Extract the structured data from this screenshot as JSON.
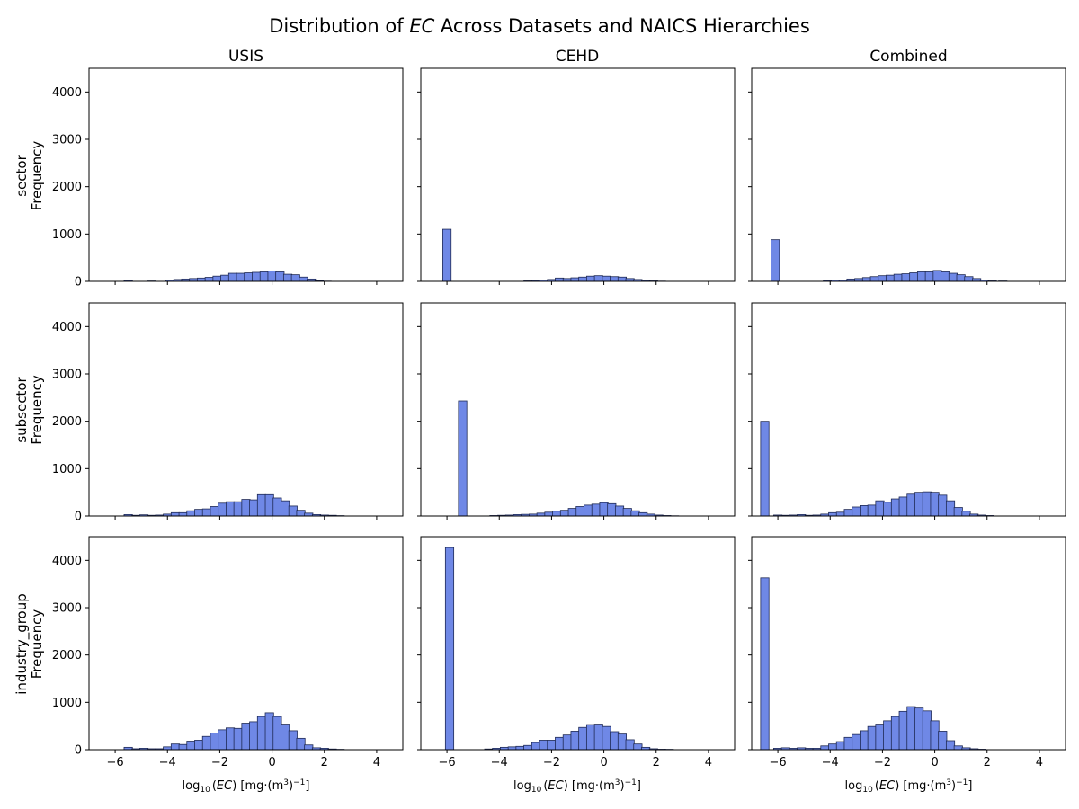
{
  "figure": {
    "title_prefix": "Distribution of ",
    "title_italic": "EC",
    "title_suffix": " Across Datasets and NAICS Hierarchies"
  },
  "columns": [
    "USIS",
    "CEHD",
    "Combined"
  ],
  "rows": [
    "sector",
    "subsector",
    "industry_group"
  ],
  "ylabel": "Frequency",
  "xlabel": {
    "log": "log",
    "sub": "10",
    "open": "(",
    "var": "EC",
    "close": ")",
    "units": " [mg·(m",
    "exp": "3",
    "units2": ")",
    "exp2": "−1",
    "units3": "]"
  },
  "axes": {
    "xlim": [
      -7,
      5
    ],
    "ylim": [
      0,
      4500
    ],
    "xticks": [
      -6,
      -4,
      -2,
      0,
      2,
      4
    ],
    "xtick_labels": [
      "−6",
      "−4",
      "−2",
      "0",
      "2",
      "4"
    ],
    "yticks": [
      0,
      1000,
      2000,
      3000,
      4000
    ],
    "ytick_labels": [
      "0",
      "1000",
      "2000",
      "3000",
      "4000"
    ]
  },
  "style": {
    "bar_fill": "#6f88e6",
    "bar_edge": "#1f2a55"
  },
  "chart_data": [
    {
      "type": "bar",
      "row": "sector",
      "column": "USIS",
      "bin_width": 0.32,
      "bins": [
        {
          "x": -5.5,
          "y": 20
        },
        {
          "x": -4.6,
          "y": 8
        },
        {
          "x": -3.9,
          "y": 25
        },
        {
          "x": -3.6,
          "y": 40
        },
        {
          "x": -3.3,
          "y": 50
        },
        {
          "x": -3.0,
          "y": 60
        },
        {
          "x": -2.7,
          "y": 70
        },
        {
          "x": -2.4,
          "y": 85
        },
        {
          "x": -2.1,
          "y": 110
        },
        {
          "x": -1.8,
          "y": 130
        },
        {
          "x": -1.5,
          "y": 170
        },
        {
          "x": -1.2,
          "y": 170
        },
        {
          "x": -0.9,
          "y": 180
        },
        {
          "x": -0.6,
          "y": 190
        },
        {
          "x": -0.3,
          "y": 200
        },
        {
          "x": 0.0,
          "y": 220
        },
        {
          "x": 0.3,
          "y": 200
        },
        {
          "x": 0.6,
          "y": 150
        },
        {
          "x": 0.9,
          "y": 140
        },
        {
          "x": 1.2,
          "y": 90
        },
        {
          "x": 1.5,
          "y": 50
        },
        {
          "x": 1.8,
          "y": 15
        },
        {
          "x": 2.1,
          "y": 5
        }
      ]
    },
    {
      "type": "bar",
      "row": "sector",
      "column": "CEHD",
      "bin_width": 0.32,
      "bins": [
        {
          "x": -6.0,
          "y": 1100
        },
        {
          "x": -2.9,
          "y": 10
        },
        {
          "x": -2.6,
          "y": 20
        },
        {
          "x": -2.3,
          "y": 30
        },
        {
          "x": -2.0,
          "y": 40
        },
        {
          "x": -1.7,
          "y": 70
        },
        {
          "x": -1.4,
          "y": 60
        },
        {
          "x": -1.1,
          "y": 75
        },
        {
          "x": -0.8,
          "y": 90
        },
        {
          "x": -0.5,
          "y": 110
        },
        {
          "x": -0.2,
          "y": 120
        },
        {
          "x": 0.1,
          "y": 110
        },
        {
          "x": 0.4,
          "y": 100
        },
        {
          "x": 0.7,
          "y": 90
        },
        {
          "x": 1.0,
          "y": 60
        },
        {
          "x": 1.3,
          "y": 40
        },
        {
          "x": 1.6,
          "y": 20
        },
        {
          "x": 1.9,
          "y": 10
        },
        {
          "x": 2.2,
          "y": 5
        }
      ]
    },
    {
      "type": "bar",
      "row": "sector",
      "column": "Combined",
      "bin_width": 0.32,
      "bins": [
        {
          "x": -6.1,
          "y": 880
        },
        {
          "x": -4.1,
          "y": 20
        },
        {
          "x": -3.8,
          "y": 30
        },
        {
          "x": -3.5,
          "y": 25
        },
        {
          "x": -3.2,
          "y": 50
        },
        {
          "x": -2.9,
          "y": 60
        },
        {
          "x": -2.6,
          "y": 80
        },
        {
          "x": -2.3,
          "y": 100
        },
        {
          "x": -2.0,
          "y": 120
        },
        {
          "x": -1.7,
          "y": 130
        },
        {
          "x": -1.4,
          "y": 150
        },
        {
          "x": -1.1,
          "y": 160
        },
        {
          "x": -0.8,
          "y": 180
        },
        {
          "x": -0.5,
          "y": 200
        },
        {
          "x": -0.2,
          "y": 200
        },
        {
          "x": 0.1,
          "y": 230
        },
        {
          "x": 0.4,
          "y": 200
        },
        {
          "x": 0.7,
          "y": 170
        },
        {
          "x": 1.0,
          "y": 140
        },
        {
          "x": 1.3,
          "y": 100
        },
        {
          "x": 1.6,
          "y": 60
        },
        {
          "x": 1.9,
          "y": 30
        },
        {
          "x": 2.2,
          "y": 10
        },
        {
          "x": 2.6,
          "y": 8
        }
      ]
    },
    {
      "type": "bar",
      "row": "subsector",
      "column": "USIS",
      "bin_width": 0.32,
      "bins": [
        {
          "x": -5.5,
          "y": 30
        },
        {
          "x": -5.2,
          "y": 15
        },
        {
          "x": -4.9,
          "y": 25
        },
        {
          "x": -4.6,
          "y": 15
        },
        {
          "x": -4.3,
          "y": 20
        },
        {
          "x": -4.0,
          "y": 40
        },
        {
          "x": -3.7,
          "y": 70
        },
        {
          "x": -3.4,
          "y": 70
        },
        {
          "x": -3.1,
          "y": 110
        },
        {
          "x": -2.8,
          "y": 140
        },
        {
          "x": -2.5,
          "y": 150
        },
        {
          "x": -2.2,
          "y": 200
        },
        {
          "x": -1.9,
          "y": 270
        },
        {
          "x": -1.6,
          "y": 300
        },
        {
          "x": -1.3,
          "y": 300
        },
        {
          "x": -1.0,
          "y": 350
        },
        {
          "x": -0.7,
          "y": 340
        },
        {
          "x": -0.4,
          "y": 450
        },
        {
          "x": -0.1,
          "y": 450
        },
        {
          "x": 0.2,
          "y": 380
        },
        {
          "x": 0.5,
          "y": 320
        },
        {
          "x": 0.8,
          "y": 210
        },
        {
          "x": 1.1,
          "y": 120
        },
        {
          "x": 1.4,
          "y": 60
        },
        {
          "x": 1.7,
          "y": 30
        },
        {
          "x": 2.0,
          "y": 20
        },
        {
          "x": 2.3,
          "y": 15
        },
        {
          "x": 2.6,
          "y": 8
        }
      ]
    },
    {
      "type": "bar",
      "row": "subsector",
      "column": "CEHD",
      "bin_width": 0.32,
      "bins": [
        {
          "x": -5.4,
          "y": 2430
        },
        {
          "x": -4.2,
          "y": 10
        },
        {
          "x": -3.9,
          "y": 15
        },
        {
          "x": -3.6,
          "y": 20
        },
        {
          "x": -3.3,
          "y": 30
        },
        {
          "x": -3.0,
          "y": 35
        },
        {
          "x": -2.7,
          "y": 40
        },
        {
          "x": -2.4,
          "y": 60
        },
        {
          "x": -2.1,
          "y": 80
        },
        {
          "x": -1.8,
          "y": 100
        },
        {
          "x": -1.5,
          "y": 120
        },
        {
          "x": -1.2,
          "y": 160
        },
        {
          "x": -0.9,
          "y": 200
        },
        {
          "x": -0.6,
          "y": 230
        },
        {
          "x": -0.3,
          "y": 250
        },
        {
          "x": 0.0,
          "y": 280
        },
        {
          "x": 0.3,
          "y": 260
        },
        {
          "x": 0.6,
          "y": 210
        },
        {
          "x": 0.9,
          "y": 160
        },
        {
          "x": 1.2,
          "y": 110
        },
        {
          "x": 1.5,
          "y": 70
        },
        {
          "x": 1.8,
          "y": 40
        },
        {
          "x": 2.1,
          "y": 20
        },
        {
          "x": 2.4,
          "y": 10
        },
        {
          "x": 2.7,
          "y": 5
        }
      ]
    },
    {
      "type": "bar",
      "row": "subsector",
      "column": "Combined",
      "bin_width": 0.32,
      "bins": [
        {
          "x": -6.5,
          "y": 2000
        },
        {
          "x": -6.0,
          "y": 20
        },
        {
          "x": -5.7,
          "y": 15
        },
        {
          "x": -5.4,
          "y": 20
        },
        {
          "x": -5.1,
          "y": 30
        },
        {
          "x": -4.8,
          "y": 15
        },
        {
          "x": -4.5,
          "y": 20
        },
        {
          "x": -4.2,
          "y": 40
        },
        {
          "x": -3.9,
          "y": 70
        },
        {
          "x": -3.6,
          "y": 80
        },
        {
          "x": -3.3,
          "y": 140
        },
        {
          "x": -3.0,
          "y": 190
        },
        {
          "x": -2.7,
          "y": 220
        },
        {
          "x": -2.4,
          "y": 230
        },
        {
          "x": -2.1,
          "y": 320
        },
        {
          "x": -1.8,
          "y": 290
        },
        {
          "x": -1.5,
          "y": 360
        },
        {
          "x": -1.2,
          "y": 400
        },
        {
          "x": -0.9,
          "y": 460
        },
        {
          "x": -0.6,
          "y": 500
        },
        {
          "x": -0.3,
          "y": 510
        },
        {
          "x": 0.0,
          "y": 500
        },
        {
          "x": 0.3,
          "y": 440
        },
        {
          "x": 0.6,
          "y": 320
        },
        {
          "x": 0.9,
          "y": 180
        },
        {
          "x": 1.2,
          "y": 100
        },
        {
          "x": 1.5,
          "y": 40
        },
        {
          "x": 1.8,
          "y": 20
        },
        {
          "x": 2.1,
          "y": 10
        }
      ]
    },
    {
      "type": "bar",
      "row": "industry_group",
      "column": "USIS",
      "bin_width": 0.32,
      "bins": [
        {
          "x": -5.5,
          "y": 50
        },
        {
          "x": -5.2,
          "y": 20
        },
        {
          "x": -4.9,
          "y": 30
        },
        {
          "x": -4.6,
          "y": 20
        },
        {
          "x": -4.3,
          "y": 20
        },
        {
          "x": -4.0,
          "y": 60
        },
        {
          "x": -3.7,
          "y": 120
        },
        {
          "x": -3.4,
          "y": 110
        },
        {
          "x": -3.1,
          "y": 180
        },
        {
          "x": -2.8,
          "y": 200
        },
        {
          "x": -2.5,
          "y": 280
        },
        {
          "x": -2.2,
          "y": 350
        },
        {
          "x": -1.9,
          "y": 420
        },
        {
          "x": -1.6,
          "y": 460
        },
        {
          "x": -1.3,
          "y": 450
        },
        {
          "x": -1.0,
          "y": 560
        },
        {
          "x": -0.7,
          "y": 590
        },
        {
          "x": -0.4,
          "y": 700
        },
        {
          "x": -0.1,
          "y": 780
        },
        {
          "x": 0.2,
          "y": 700
        },
        {
          "x": 0.5,
          "y": 540
        },
        {
          "x": 0.8,
          "y": 400
        },
        {
          "x": 1.1,
          "y": 240
        },
        {
          "x": 1.4,
          "y": 100
        },
        {
          "x": 1.7,
          "y": 40
        },
        {
          "x": 2.0,
          "y": 30
        },
        {
          "x": 2.3,
          "y": 15
        },
        {
          "x": 2.6,
          "y": 8
        }
      ]
    },
    {
      "type": "bar",
      "row": "industry_group",
      "column": "CEHD",
      "bin_width": 0.32,
      "bins": [
        {
          "x": -5.9,
          "y": 4270
        },
        {
          "x": -4.4,
          "y": 15
        },
        {
          "x": -4.1,
          "y": 30
        },
        {
          "x": -3.8,
          "y": 50
        },
        {
          "x": -3.5,
          "y": 60
        },
        {
          "x": -3.2,
          "y": 70
        },
        {
          "x": -2.9,
          "y": 90
        },
        {
          "x": -2.6,
          "y": 150
        },
        {
          "x": -2.3,
          "y": 200
        },
        {
          "x": -2.0,
          "y": 200
        },
        {
          "x": -1.7,
          "y": 260
        },
        {
          "x": -1.4,
          "y": 310
        },
        {
          "x": -1.1,
          "y": 390
        },
        {
          "x": -0.8,
          "y": 470
        },
        {
          "x": -0.5,
          "y": 530
        },
        {
          "x": -0.2,
          "y": 540
        },
        {
          "x": 0.1,
          "y": 490
        },
        {
          "x": 0.4,
          "y": 380
        },
        {
          "x": 0.7,
          "y": 330
        },
        {
          "x": 1.0,
          "y": 210
        },
        {
          "x": 1.3,
          "y": 120
        },
        {
          "x": 1.6,
          "y": 50
        },
        {
          "x": 1.9,
          "y": 20
        },
        {
          "x": 2.2,
          "y": 10
        },
        {
          "x": 2.5,
          "y": 8
        }
      ]
    },
    {
      "type": "bar",
      "row": "industry_group",
      "column": "Combined",
      "bin_width": 0.32,
      "bins": [
        {
          "x": -6.5,
          "y": 3630
        },
        {
          "x": -6.0,
          "y": 30
        },
        {
          "x": -5.7,
          "y": 40
        },
        {
          "x": -5.4,
          "y": 30
        },
        {
          "x": -5.1,
          "y": 40
        },
        {
          "x": -4.8,
          "y": 30
        },
        {
          "x": -4.5,
          "y": 30
        },
        {
          "x": -4.2,
          "y": 80
        },
        {
          "x": -3.9,
          "y": 120
        },
        {
          "x": -3.6,
          "y": 170
        },
        {
          "x": -3.3,
          "y": 260
        },
        {
          "x": -3.0,
          "y": 320
        },
        {
          "x": -2.7,
          "y": 400
        },
        {
          "x": -2.4,
          "y": 490
        },
        {
          "x": -2.1,
          "y": 540
        },
        {
          "x": -1.8,
          "y": 610
        },
        {
          "x": -1.5,
          "y": 700
        },
        {
          "x": -1.2,
          "y": 810
        },
        {
          "x": -0.9,
          "y": 910
        },
        {
          "x": -0.6,
          "y": 880
        },
        {
          "x": -0.3,
          "y": 820
        },
        {
          "x": 0.0,
          "y": 610
        },
        {
          "x": 0.3,
          "y": 390
        },
        {
          "x": 0.6,
          "y": 190
        },
        {
          "x": 0.9,
          "y": 80
        },
        {
          "x": 1.2,
          "y": 40
        },
        {
          "x": 1.5,
          "y": 20
        },
        {
          "x": 1.8,
          "y": 10
        }
      ]
    }
  ]
}
